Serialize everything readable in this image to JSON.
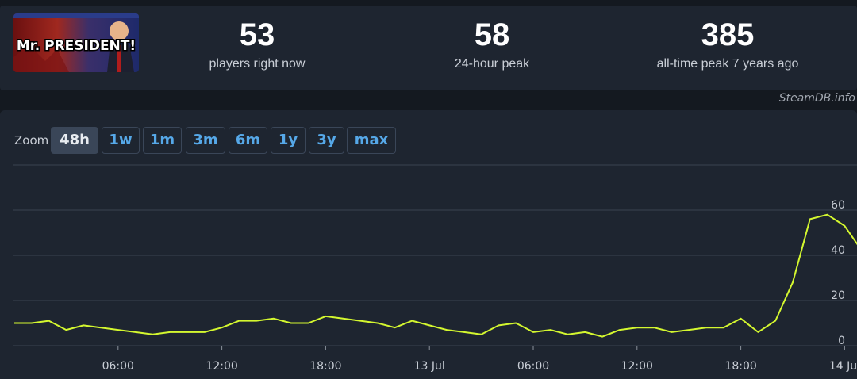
{
  "header": {
    "logo_text": "Mr. PRESIDENT!",
    "stats": [
      {
        "value": "53",
        "label": "players right now"
      },
      {
        "value": "58",
        "label": "24-hour peak"
      },
      {
        "value": "385",
        "label": "all-time peak 7 years ago"
      }
    ]
  },
  "credit": "SteamDB.info",
  "zoom": {
    "label": "Zoom",
    "options": [
      "48h",
      "1w",
      "1m",
      "3m",
      "6m",
      "1y",
      "3y",
      "max"
    ],
    "active": "48h"
  },
  "chart_data": {
    "type": "line",
    "title": "",
    "xlabel": "",
    "ylabel": "",
    "x_ticks": [
      "06:00",
      "12:00",
      "18:00",
      "13 Jul",
      "06:00",
      "12:00",
      "18:00",
      "14 Jul"
    ],
    "y_ticks": [
      0,
      20,
      40,
      60
    ],
    "ylim": [
      0,
      80
    ],
    "grid": true,
    "line_color": "#d4f72f",
    "series": [
      {
        "name": "",
        "x_hours": [
          2,
          3,
          4,
          5,
          6,
          7,
          8,
          9,
          10,
          11,
          12,
          13,
          14,
          15,
          16,
          17,
          18,
          19,
          20,
          21,
          22,
          23,
          24,
          25,
          26,
          27,
          28,
          29,
          30,
          31,
          32,
          33,
          34,
          35,
          36,
          37,
          38,
          39,
          40,
          41,
          42,
          43,
          44,
          45,
          46,
          47,
          48,
          49,
          50,
          51
        ],
        "values": [
          10,
          10,
          11,
          7,
          9,
          8,
          7,
          6,
          5,
          6,
          6,
          6,
          8,
          11,
          11,
          12,
          10,
          10,
          13,
          12,
          11,
          10,
          8,
          11,
          9,
          7,
          6,
          5,
          9,
          10,
          6,
          7,
          5,
          6,
          4,
          7,
          8,
          8,
          6,
          7,
          8,
          8,
          12,
          6,
          11,
          28,
          56,
          58,
          53,
          42
        ]
      }
    ]
  }
}
